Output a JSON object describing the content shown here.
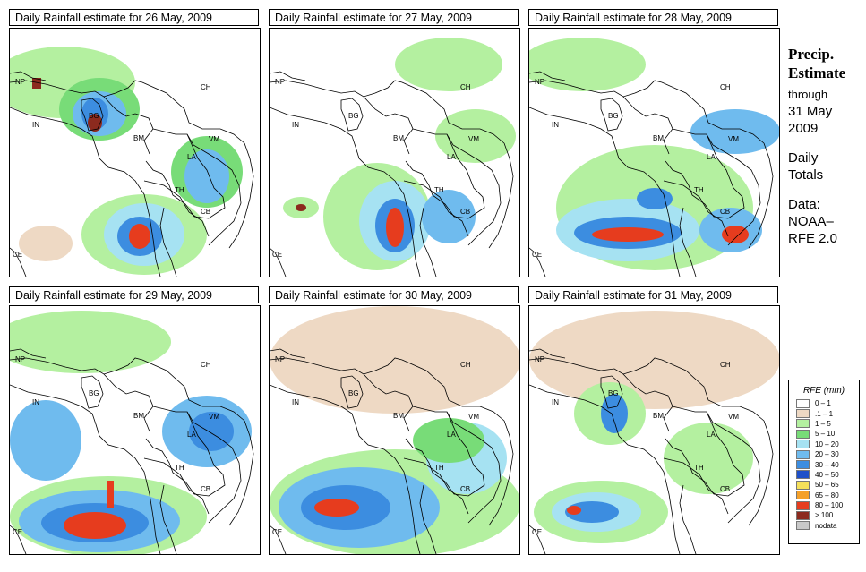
{
  "panels": [
    {
      "title": "Daily Rainfall estimate for  26 May, 2009"
    },
    {
      "title": "Daily Rainfall estimate for  27 May, 2009"
    },
    {
      "title": "Daily Rainfall estimate for  28 May, 2009"
    },
    {
      "title": "Daily Rainfall estimate for  29 May, 2009"
    },
    {
      "title": "Daily Rainfall estimate for  30 May, 2009"
    },
    {
      "title": "Daily Rainfall estimate for  31 May, 2009"
    }
  ],
  "country_labels": {
    "np": "NP",
    "ch": "CH",
    "in": "IN",
    "bg": "BG",
    "bm": "BM",
    "vm": "VM",
    "la": "LA",
    "th": "TH",
    "cb": "CB",
    "ce": "CE"
  },
  "side": {
    "precip": "Precip.",
    "estimate": "Estimate",
    "through": "through",
    "date_line1": "31 May",
    "date_line2": "2009",
    "daily": "Daily",
    "totals": "Totals",
    "data_label": "Data:",
    "source1": "NOAA–",
    "source2": "RFE 2.0"
  },
  "legend": {
    "title": "RFE (mm)",
    "items": [
      {
        "label": "0 – 1",
        "color": "#ffffff"
      },
      {
        "label": ".1 – 1",
        "color": "#eed9c4"
      },
      {
        "label": "1 – 5",
        "color": "#b4f0a0"
      },
      {
        "label": "5 – 10",
        "color": "#78dc78"
      },
      {
        "label": "10 – 20",
        "color": "#a6e2f2"
      },
      {
        "label": "20 – 30",
        "color": "#6fbbee"
      },
      {
        "label": "30 – 40",
        "color": "#3c8de0"
      },
      {
        "label": "40 – 50",
        "color": "#1e50c8"
      },
      {
        "label": "50 – 65",
        "color": "#f5e05a"
      },
      {
        "label": "65 – 80",
        "color": "#f5a028"
      },
      {
        "label": "80 – 100",
        "color": "#e63c1e"
      },
      {
        "label": "> 100",
        "color": "#8c2a1e"
      },
      {
        "label": "nodata",
        "color": "#c8c8c8"
      }
    ]
  }
}
